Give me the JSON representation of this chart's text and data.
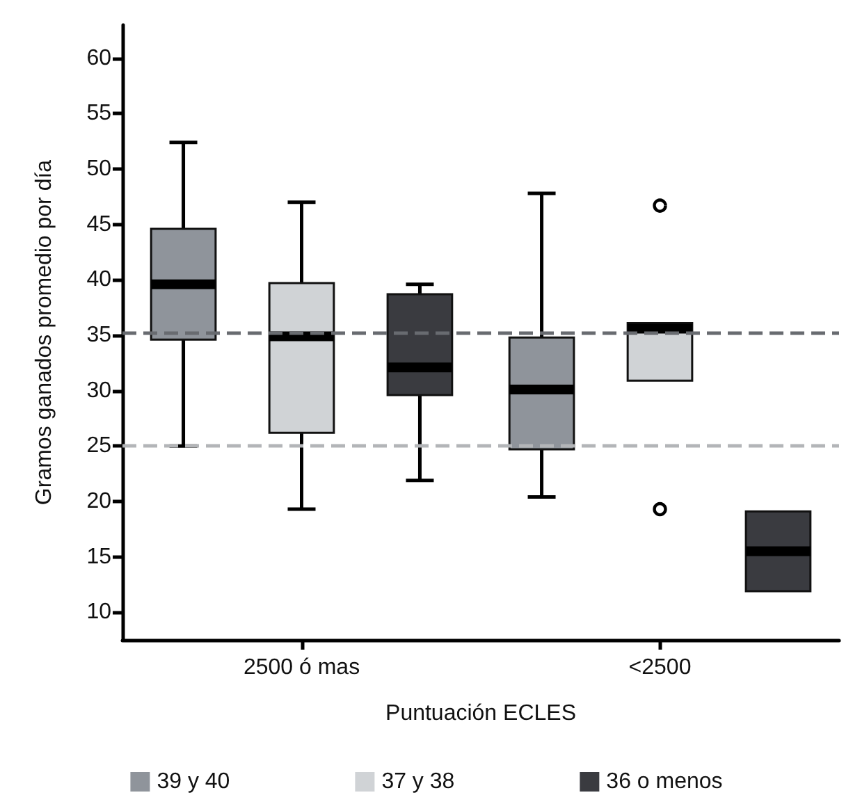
{
  "chart_data": {
    "type": "box",
    "xlabel": "Puntuación ECLES",
    "ylabel": "Gramos ganados promedio por día",
    "categories": [
      "2500 ó mas",
      "<2500"
    ],
    "ylim": [
      7.5,
      63
    ],
    "yticks": [
      10,
      15,
      20,
      25,
      30,
      35,
      40,
      45,
      50,
      55,
      60
    ],
    "grid": false,
    "legend": "bottom",
    "series": [
      {
        "name": "39 y 40",
        "color": "#8f949b",
        "boxes": [
          {
            "low": 25,
            "q1": 34.6,
            "median": 39.6,
            "q3": 44.6,
            "high": 52.4
          },
          {
            "low": 20.4,
            "q1": 24.7,
            "median": 30.1,
            "q3": 34.8,
            "high": 47.8
          }
        ]
      },
      {
        "name": "37 y 38",
        "color": "#d0d3d6",
        "boxes": [
          {
            "low": 19.3,
            "q1": 26.2,
            "median": 34.9,
            "q3": 39.7,
            "high": 47
          },
          {
            "low": 30.9,
            "q1": 30.9,
            "median": 35.6,
            "q3": 36.1,
            "high": 36.1,
            "outliers": [
              46.7,
              19.3
            ]
          }
        ]
      },
      {
        "name": "36 o menos",
        "color": "#3a3b40",
        "boxes": [
          {
            "low": 21.9,
            "q1": 29.6,
            "median": 32.1,
            "q3": 38.7,
            "high": 39.6
          },
          {
            "low": 11.9,
            "q1": 11.9,
            "median": 15.5,
            "q3": 19.1,
            "high": 19.1
          }
        ]
      }
    ],
    "ref_lines": [
      {
        "axis": "y",
        "value": 35.2,
        "color": "#686b70",
        "line_style": "dashed"
      },
      {
        "axis": "y",
        "value": 25,
        "color": "#b3b5b8",
        "line_style": "dashed"
      }
    ]
  }
}
